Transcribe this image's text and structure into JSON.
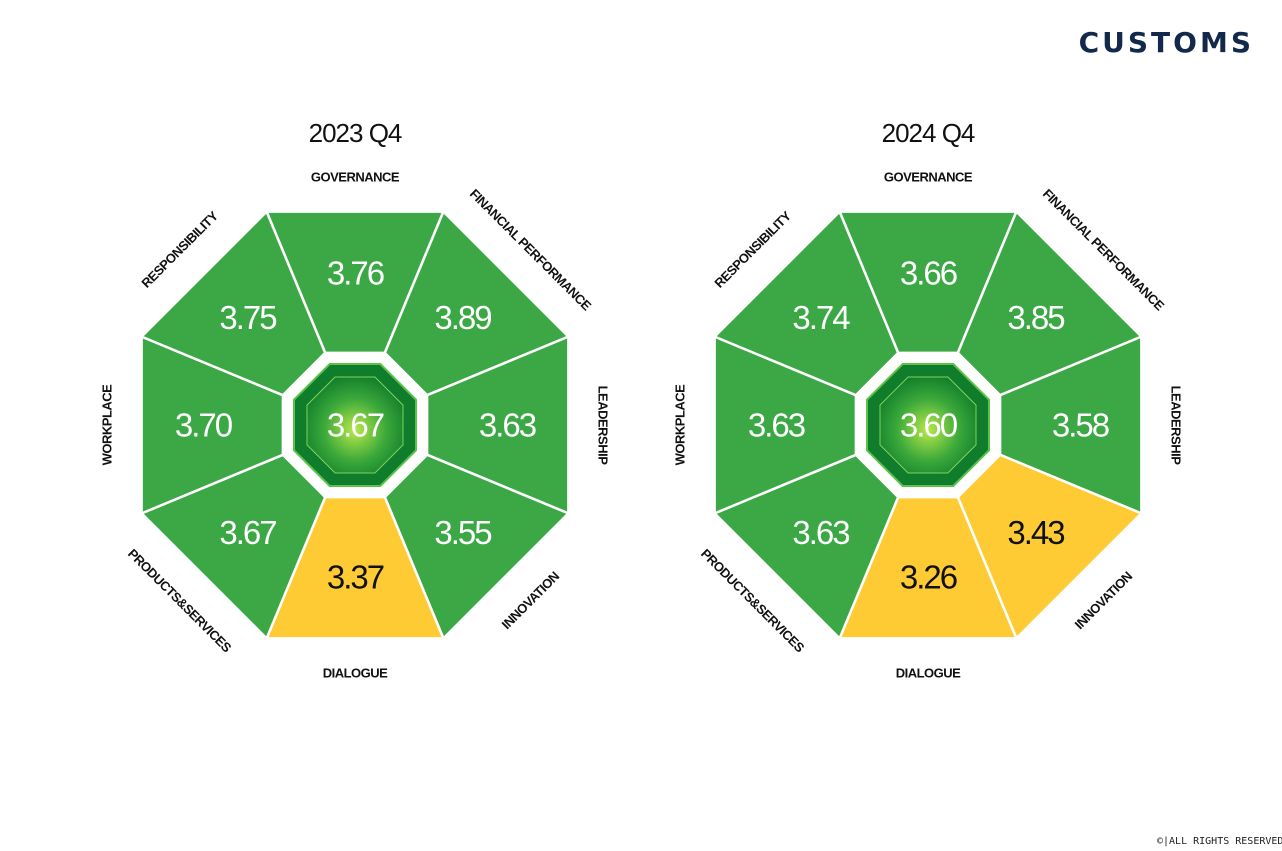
{
  "header": {
    "brand": "CUSTOMS"
  },
  "footer": {
    "text": "©|ALL RIGHTS RESERVED"
  },
  "colors": {
    "good": "#3ca845",
    "warning": "#fecb35",
    "divider": "#ffffff"
  },
  "chart_data": [
    {
      "type": "octagon-scorecard",
      "title": "2023 Q4",
      "center": {
        "value": "3.67"
      },
      "segments": [
        {
          "label": "GOVERNANCE",
          "value": "3.76",
          "status": "good"
        },
        {
          "label": "FINANCIAL PERFORMANCE",
          "value": "3.89",
          "status": "good"
        },
        {
          "label": "LEADERSHIP",
          "value": "3.63",
          "status": "good"
        },
        {
          "label": "INNOVATION",
          "value": "3.55",
          "status": "good"
        },
        {
          "label": "DIALOGUE",
          "value": "3.37",
          "status": "warning"
        },
        {
          "label": "PRODUCTS&SERVICES",
          "value": "3.67",
          "status": "good"
        },
        {
          "label": "WORKPLACE",
          "value": "3.70",
          "status": "good"
        },
        {
          "label": "RESPONSIBILITY",
          "value": "3.75",
          "status": "good"
        }
      ]
    },
    {
      "type": "octagon-scorecard",
      "title": "2024 Q4",
      "center": {
        "value": "3.60"
      },
      "segments": [
        {
          "label": "GOVERNANCE",
          "value": "3.66",
          "status": "good"
        },
        {
          "label": "FINANCIAL PERFORMANCE",
          "value": "3.85",
          "status": "good"
        },
        {
          "label": "LEADERSHIP",
          "value": "3.58",
          "status": "good"
        },
        {
          "label": "INNOVATION",
          "value": "3.43",
          "status": "warning"
        },
        {
          "label": "DIALOGUE",
          "value": "3.26",
          "status": "warning"
        },
        {
          "label": "PRODUCTS&SERVICES",
          "value": "3.63",
          "status": "good"
        },
        {
          "label": "WORKPLACE",
          "value": "3.63",
          "status": "good"
        },
        {
          "label": "RESPONSIBILITY",
          "value": "3.74",
          "status": "good"
        }
      ]
    }
  ]
}
